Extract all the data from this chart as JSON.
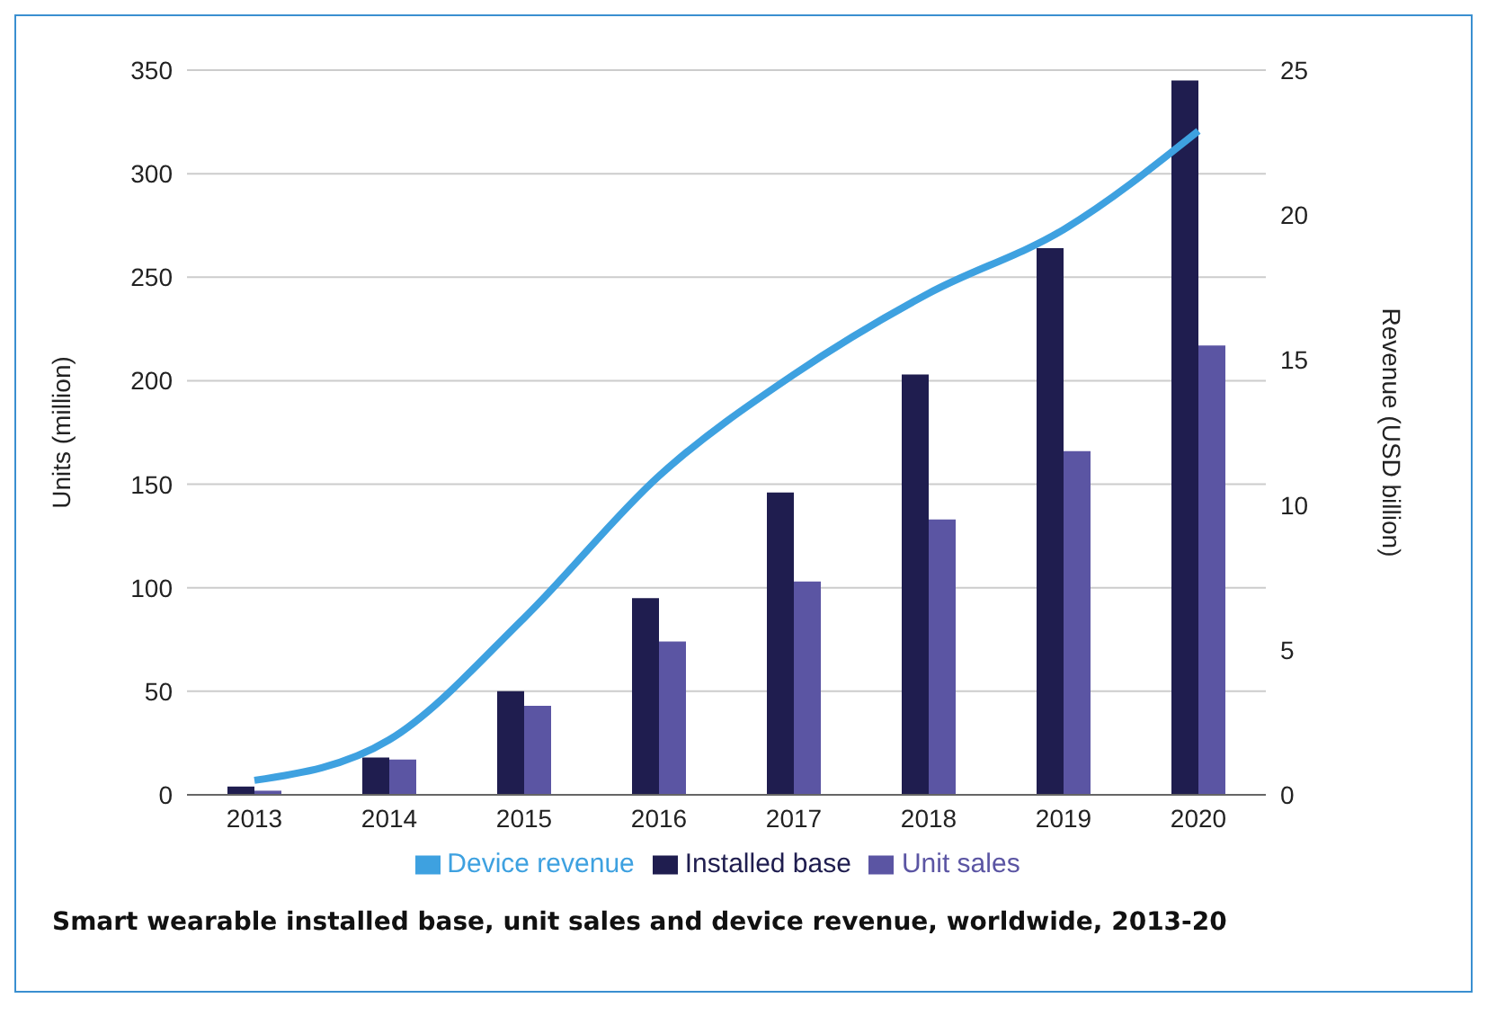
{
  "chart_data": {
    "type": "bar",
    "title": "Smart wearable installed base, unit sales and device revenue, worldwide, 2013-20",
    "categories": [
      "2013",
      "2014",
      "2015",
      "2016",
      "2017",
      "2018",
      "2019",
      "2020"
    ],
    "series": [
      {
        "name": "Installed base",
        "color": "#1f1d4f",
        "values": [
          4,
          18,
          50,
          95,
          146,
          203,
          264,
          345
        ]
      },
      {
        "name": "Unit sales",
        "color": "#5b55a3",
        "values": [
          2,
          17,
          43,
          74,
          103,
          133,
          166,
          217
        ]
      },
      {
        "name": "Device revenue",
        "type": "line",
        "axis": "y2",
        "color": "#3ea1e0",
        "values": [
          0.5,
          1.9,
          6.1,
          11,
          14.5,
          17.3,
          19.5,
          22.9
        ]
      }
    ],
    "ylabel": "Units (million)",
    "y2label": "Revenue (USD billion)",
    "ylim": [
      0,
      350
    ],
    "yticks": [
      0,
      50,
      100,
      150,
      200,
      250,
      300,
      350
    ],
    "y2lim": [
      0,
      25
    ],
    "y2ticks": [
      0,
      5,
      10,
      15,
      20,
      25
    ],
    "grid": "y",
    "legend": "bottom",
    "marker": "none"
  }
}
